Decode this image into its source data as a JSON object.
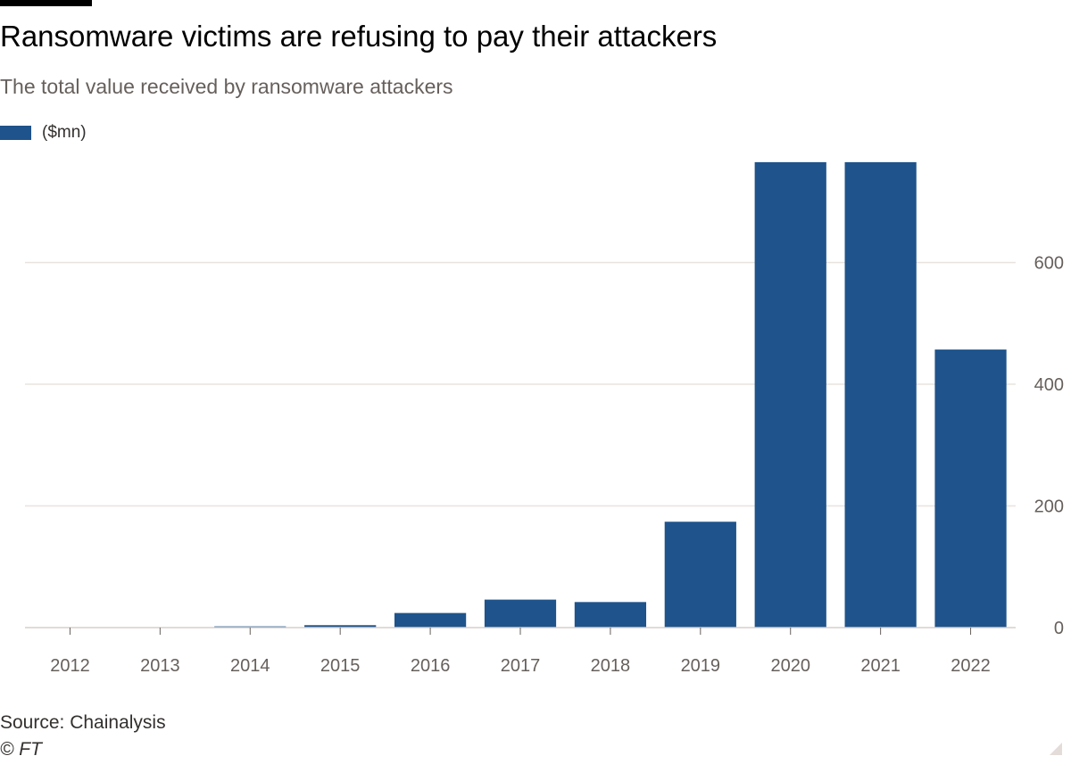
{
  "title": "Ransomware victims are refusing to pay their attackers",
  "subtitle": "The total value received by ransomware attackers",
  "source": "Source: Chainalysis",
  "copyright": "© FT",
  "colors": {
    "bar": "#1f538b",
    "grid": "#e9e3df",
    "axis": "#66605c",
    "baseline": "#d6cfcb"
  },
  "chart_data": {
    "type": "bar",
    "categories": [
      "2012",
      "2013",
      "2014",
      "2015",
      "2016",
      "2017",
      "2018",
      "2019",
      "2020",
      "2021",
      "2022"
    ],
    "series": [
      {
        "name": "($mn)",
        "values": [
          0,
          0,
          2,
          4,
          24,
          46,
          42,
          174,
          765,
          765,
          457
        ]
      }
    ],
    "y_ticks": [
      0,
      200,
      400,
      600
    ],
    "ylim": [
      0,
      800
    ],
    "yaxis_position": "right",
    "grid": true,
    "legend_position": "top-left"
  }
}
